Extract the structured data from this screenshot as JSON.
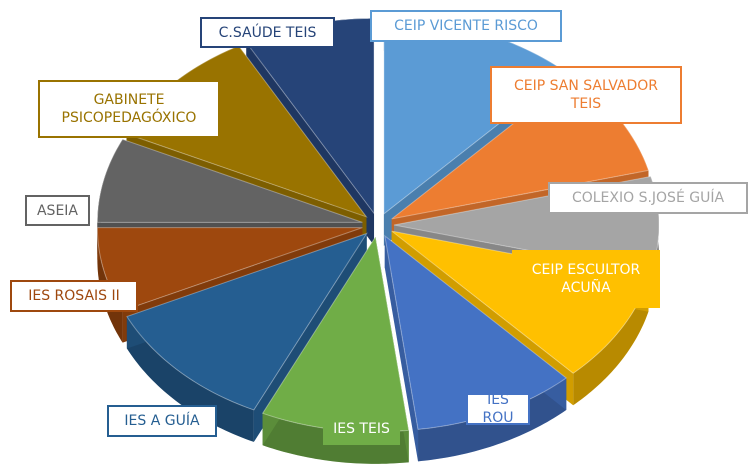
{
  "chart_data": {
    "type": "pie3d",
    "categories": [
      "CEIP VICENTE RISCO",
      "CEIP SAN SALVADOR TEIS",
      "COLEXIO S.JOSÉ GUÍA",
      "CEIP ESCULTOR ACUÑA",
      "IES ROU",
      "IES TEIS",
      "IES A GUÍA",
      "IES ROSAIS II",
      "ASEIA",
      "GABINETE PSICOPEDAGÓXICO",
      "C.SAÚDE TEIS"
    ],
    "values": [
      12,
      9,
      8,
      9,
      10,
      9,
      11,
      7,
      7,
      10,
      8
    ],
    "colors": [
      "#5b9bd5",
      "#ed7d31",
      "#a5a5a5",
      "#ffc000",
      "#4472c4",
      "#70ad47",
      "#255e91",
      "#9e480e",
      "#636363",
      "#997300",
      "#264478"
    ]
  }
}
